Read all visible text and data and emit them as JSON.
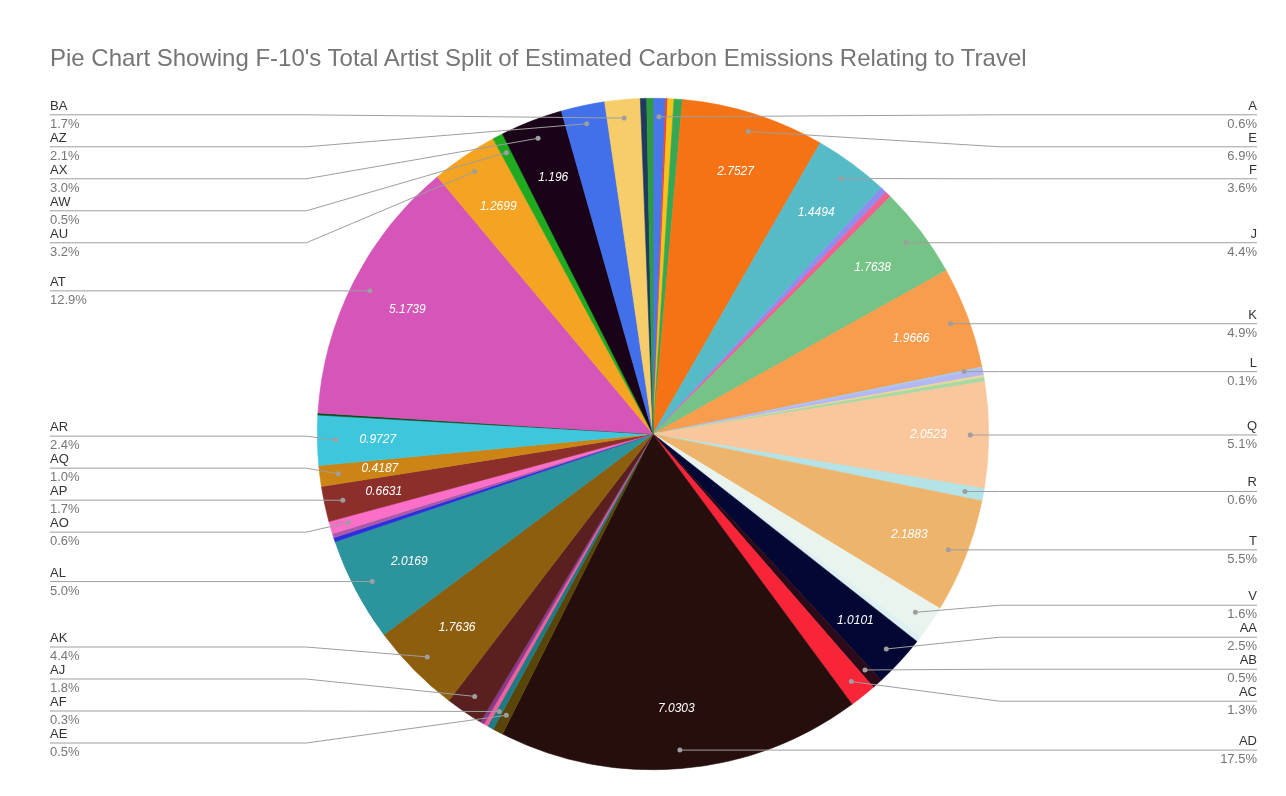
{
  "chart_data": {
    "type": "pie",
    "title": "Pie Chart Showing F-10's Total Artist Split of Estimated Carbon Emissions Relating to Travel",
    "categories": [
      "A",
      null,
      null,
      null,
      "E",
      "F",
      null,
      null,
      "J",
      "K",
      "L",
      null,
      null,
      null,
      "Q",
      "R",
      "T",
      "V",
      null,
      "AA",
      "AB",
      "AC",
      "AD",
      "AE",
      "AF",
      null,
      null,
      "AJ",
      "AK",
      "AL",
      null,
      null,
      "AO",
      "AP",
      "AQ",
      "AR",
      null,
      "AT",
      "AU",
      "AW",
      "AX",
      "AZ",
      "BA",
      null,
      null
    ],
    "values": [
      0.6,
      0.1,
      0.3,
      0.4,
      6.9,
      3.6,
      0.3,
      0.3,
      4.4,
      4.9,
      0.1,
      0.3,
      0.1,
      0.2,
      5.1,
      0.6,
      5.5,
      1.6,
      0.3,
      2.5,
      0.5,
      1.3,
      17.5,
      0.5,
      0.3,
      0.2,
      0.2,
      1.8,
      4.4,
      5.0,
      0.2,
      0.2,
      0.6,
      1.7,
      1.0,
      2.4,
      0.1,
      12.9,
      3.2,
      0.5,
      3.0,
      2.1,
      1.7,
      0.3,
      0.3
    ],
    "colors": [
      "#4a77e8",
      "#e8453c",
      "#f7c31b",
      "#34a853",
      "#f57315",
      "#57bbc7",
      "#8e8ef0",
      "#f06292",
      "#75c386",
      "#f89c4e",
      "#a3c9f0",
      "#b3b8f5",
      "#f3d98a",
      "#a6d9a6",
      "#f9c79b",
      "#b3e3e6",
      "#efb46b",
      "#eaf4ee",
      "#dff0f5",
      "#020733",
      "#2b0a1a",
      "#f72537",
      "#260e0d",
      "#5a4508",
      "#1f7a86",
      "#f0609a",
      "#8a3a8a",
      "#5a1f1f",
      "#8c5e0d",
      "#2c949c",
      "#2e2ee0",
      "#a95aa8",
      "#fb6fc8",
      "#8c2f2b",
      "#cc8514",
      "#3ec7dc",
      "#0d4d1f",
      "#d555b8",
      "#f4a322",
      "#1faa1f",
      "#1a0319",
      "#4170ea",
      "#f7cd6a",
      "#1e3a5f",
      "#2e9c3e"
    ],
    "value_labels": [
      "0.6%",
      null,
      null,
      null,
      "6.9%",
      "3.6%",
      null,
      null,
      "4.4%",
      "4.9%",
      "0.1%",
      null,
      null,
      null,
      "5.1%",
      "0.6%",
      "5.5%",
      "1.6%",
      null,
      "2.5%",
      "0.5%",
      "1.3%",
      "17.5%",
      "0.5%",
      "0.3%",
      null,
      null,
      "1.8%",
      "4.4%",
      "5.0%",
      null,
      null,
      "0.6%",
      "1.7%",
      "1.0%",
      "2.4%",
      null,
      "12.9%",
      "3.2%",
      "0.5%",
      "3.0%",
      "2.1%",
      "1.7%",
      null,
      null
    ],
    "annotations": [
      {
        "text": "2.7527",
        "x": "E"
      },
      {
        "text": "1.4494",
        "x": "F"
      },
      {
        "text": "1.7638",
        "x": "J"
      },
      {
        "text": "1.9666",
        "x": "K"
      },
      {
        "text": "2.0523",
        "x": "Q"
      },
      {
        "text": "2.1883",
        "x": "T"
      },
      {
        "text": "1.0101",
        "x": "AA"
      },
      {
        "text": "7.0303",
        "x": "AD"
      },
      {
        "text": "1.7636",
        "x": "AK"
      },
      {
        "text": "2.0169",
        "x": "AL"
      },
      {
        "text": "0.6631",
        "x": "AP"
      },
      {
        "text": "0.4187",
        "x": "AQ"
      },
      {
        "text": "0.9727",
        "x": "AR"
      },
      {
        "text": "5.1739",
        "x": "AT"
      },
      {
        "text": "1.2699",
        "x": "AU"
      },
      {
        "text": "1.196",
        "x": "AX"
      }
    ]
  }
}
